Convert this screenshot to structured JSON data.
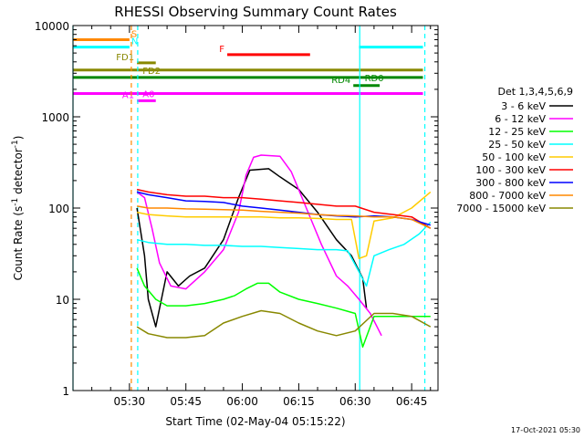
{
  "chart_data": {
    "type": "line",
    "title": "RHESSI Observing Summary Count Rates",
    "xlabel": "Start Time (02-May-04 05:15:22)",
    "ylabel": "Count Rate (s⁻¹ detector⁻¹)",
    "ylabel_main": "Count Rate (s",
    "ylabel_sup1": "-1",
    "ylabel_mid": " detector",
    "ylabel_sup2": "-1",
    "ylabel_end": ")",
    "yscale": "log",
    "xlim_minutes": [
      0,
      97
    ],
    "ylim": [
      1,
      10000
    ],
    "x_ticks": [
      {
        "min": 15,
        "label": "05:30"
      },
      {
        "min": 30,
        "label": "05:45"
      },
      {
        "min": 45,
        "label": "06:00"
      },
      {
        "min": 60,
        "label": "06:15"
      },
      {
        "min": 75,
        "label": "06:30"
      },
      {
        "min": 90,
        "label": "06:45"
      }
    ],
    "y_ticks": [
      {
        "value": 1,
        "label": "1"
      },
      {
        "value": 10,
        "label": "10"
      },
      {
        "value": 100,
        "label": "100"
      },
      {
        "value": 1000,
        "label": "1000"
      },
      {
        "value": 10000,
        "label": "10000"
      }
    ],
    "legend_title": "Det 1,3,4,5,6,9",
    "legend_placement": "right",
    "series": [
      {
        "name": "3 - 6 keV",
        "color": "#000000",
        "x": [
          17,
          19,
          20,
          22,
          25,
          28,
          31,
          35,
          40,
          44,
          47,
          52,
          55,
          60,
          65,
          70,
          74,
          77,
          78
        ],
        "y": [
          100,
          30,
          10,
          5,
          20,
          14,
          18,
          22,
          45,
          130,
          260,
          270,
          220,
          160,
          90,
          45,
          30,
          17,
          8
        ]
      },
      {
        "name": "6 - 12 keV",
        "color": "#ff00ff",
        "x": [
          17,
          19,
          21,
          23,
          26,
          30,
          35,
          40,
          44,
          46,
          48,
          50,
          55,
          58,
          62,
          66,
          70,
          73,
          76,
          79,
          82
        ],
        "y": [
          150,
          130,
          60,
          25,
          14,
          13,
          20,
          35,
          90,
          230,
          360,
          380,
          370,
          250,
          100,
          40,
          18,
          14,
          10,
          7,
          4
        ]
      },
      {
        "name": "12 - 25 keV",
        "color": "#00ff00",
        "x": [
          17,
          19,
          22,
          25,
          30,
          35,
          40,
          43,
          46,
          49,
          52,
          55,
          60,
          65,
          70,
          75,
          77,
          80,
          85,
          90,
          95
        ],
        "y": [
          22,
          14,
          10,
          8.5,
          8.5,
          9,
          10,
          11,
          13,
          15,
          15,
          12,
          10,
          9,
          8,
          7,
          3,
          6.5,
          6.5,
          6.5,
          6.5
        ]
      },
      {
        "name": "25 - 50 keV",
        "color": "#00ffff",
        "x": [
          17,
          20,
          25,
          30,
          35,
          40,
          45,
          50,
          55,
          60,
          65,
          70,
          73,
          76,
          78,
          80,
          84,
          88,
          92,
          95
        ],
        "y": [
          45,
          42,
          40,
          40,
          39,
          39,
          38,
          38,
          37,
          36,
          35,
          35,
          34,
          20,
          14,
          30,
          35,
          40,
          52,
          70
        ]
      },
      {
        "name": "50 - 100 keV",
        "color": "#ffcc00",
        "x": [
          17,
          20,
          25,
          30,
          35,
          40,
          45,
          50,
          55,
          60,
          65,
          70,
          74,
          76,
          78,
          80,
          85,
          90,
          95
        ],
        "y": [
          90,
          85,
          82,
          80,
          80,
          80,
          80,
          80,
          78,
          78,
          77,
          75,
          75,
          28,
          30,
          72,
          78,
          100,
          150
        ]
      },
      {
        "name": "100 - 300 keV",
        "color": "#ff0000",
        "x": [
          17,
          20,
          25,
          30,
          35,
          40,
          45,
          50,
          55,
          60,
          65,
          70,
          75,
          80,
          85,
          90,
          95
        ],
        "y": [
          160,
          150,
          140,
          135,
          135,
          130,
          130,
          125,
          120,
          115,
          110,
          105,
          105,
          90,
          85,
          80,
          60
        ]
      },
      {
        "name": "300 - 800 keV",
        "color": "#0000ff",
        "x": [
          17,
          20,
          25,
          30,
          35,
          40,
          45,
          50,
          55,
          60,
          65,
          70,
          75,
          80,
          85,
          90,
          95
        ],
        "y": [
          150,
          140,
          130,
          120,
          118,
          115,
          105,
          100,
          95,
          90,
          85,
          82,
          80,
          82,
          80,
          75,
          65
        ]
      },
      {
        "name": "800 - 7000 keV",
        "color": "#ff8800",
        "x": [
          17,
          20,
          25,
          30,
          35,
          40,
          45,
          50,
          55,
          60,
          65,
          70,
          75,
          80,
          85,
          90,
          95
        ],
        "y": [
          105,
          100,
          100,
          98,
          97,
          96,
          95,
          92,
          90,
          88,
          85,
          83,
          82,
          80,
          80,
          75,
          60
        ]
      },
      {
        "name": "7000 - 15000 keV",
        "color": "#888800",
        "x": [
          17,
          20,
          25,
          30,
          35,
          40,
          45,
          50,
          55,
          60,
          65,
          70,
          75,
          80,
          85,
          90,
          95
        ],
        "y": [
          5,
          4.2,
          3.8,
          3.8,
          4,
          5.5,
          6.5,
          7.5,
          7,
          5.5,
          4.5,
          4,
          4.5,
          7,
          7,
          6.5,
          5
        ]
      }
    ],
    "flag_lines": [
      {
        "label": "S",
        "color": "#ff8800",
        "x0": 0,
        "x1": 15,
        "y": 7000,
        "label_side": "end"
      },
      {
        "label": "N",
        "color": "#00ffff",
        "x0": 0,
        "x1": 15,
        "y": 5800,
        "label_side": "end"
      },
      {
        "label": "N",
        "color": "#00ffff",
        "x0": 76,
        "x1": 93,
        "y": 5800,
        "label_side": "none"
      },
      {
        "label": "F",
        "color": "#ff0000",
        "x0": 41,
        "x1": 63,
        "y": 4800,
        "label_side": "start"
      },
      {
        "label": "FD1",
        "color": "#888800",
        "x0": 17,
        "x1": 22,
        "y": 3900,
        "label_side": "start"
      },
      {
        "label": "FD2",
        "color": "#888800",
        "x0": 0,
        "x1": 93,
        "y": 3250,
        "label_side": "mid_fd2"
      },
      {
        "label": "RD0",
        "color": "#008800",
        "x0": 0,
        "x1": 93,
        "y": 2700,
        "label_side": "mid_rd0"
      },
      {
        "label": "RD4",
        "color": "#008800",
        "x0": 74.5,
        "x1": 81.5,
        "y": 2200,
        "label_side": "start"
      },
      {
        "label": "A1",
        "color": "#ff00ff",
        "x0": 17,
        "x1": 22,
        "y": 1500,
        "label_side": "start"
      },
      {
        "label": "A0",
        "color": "#ff00ff",
        "x0": 0,
        "x1": 93,
        "y": 1800,
        "label_side": "mid_a0"
      }
    ],
    "attenuator_label_positions": {
      "FD2_x": 18.5,
      "RD0_x": 77.5,
      "A0_x": 18.5
    },
    "vertical_lines": [
      {
        "x": 0,
        "color": "#00ffff",
        "style": "solid"
      },
      {
        "x": 15.5,
        "color": "#ff8800",
        "style": "dashed"
      },
      {
        "x": 17.2,
        "color": "#00ffff",
        "style": "dashed"
      },
      {
        "x": 76.2,
        "color": "#00ffff",
        "style": "solid"
      },
      {
        "x": 93.5,
        "color": "#00ffff",
        "style": "dashed"
      }
    ],
    "footer_date": "17-Oct-2021 05:30"
  }
}
